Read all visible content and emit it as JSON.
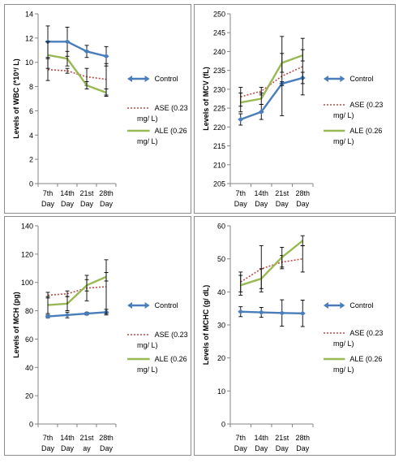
{
  "colors": {
    "control": "#4a7ebb",
    "ase": "#be4b48",
    "ale": "#98b954",
    "axis": "#868686",
    "errorbar": "#000000",
    "panel_border": "#8c8c8c"
  },
  "chart_data": [
    {
      "type": "line",
      "ylabel": "Levels of WBC (*10³/ L)",
      "categories": [
        [
          "7th",
          "Day"
        ],
        [
          "14th",
          "Day"
        ],
        [
          "21st",
          "Day"
        ],
        [
          "28th",
          "Day"
        ]
      ],
      "ylim": [
        0,
        14
      ],
      "ystep": 2,
      "yticks_labels": [
        "0",
        "2",
        "4",
        "6",
        "8",
        "10",
        "12",
        "14"
      ],
      "grid": false,
      "legend_position": "right",
      "series": [
        {
          "key": "control",
          "name": "Control",
          "values": [
            11.7,
            11.7,
            10.9,
            10.5
          ],
          "errors": [
            1.3,
            1.2,
            0.5,
            0.8
          ],
          "style": "solid-arrow"
        },
        {
          "key": "ase",
          "name": "ASE (0.23 mg/ L)",
          "values": [
            9.4,
            9.3,
            8.8,
            8.6
          ],
          "errors": [
            0.9,
            0.2,
            0.7,
            1.3
          ],
          "style": "dotted"
        },
        {
          "key": "ale",
          "name": "ALE (0.26 mg/ L)",
          "values": [
            10.6,
            10.3,
            8.1,
            7.5
          ],
          "errors": [
            1.1,
            0.6,
            0.3,
            0.3
          ],
          "style": "solid"
        }
      ]
    },
    {
      "type": "line",
      "ylabel": "Levels of MCV (fL)",
      "categories": [
        [
          "7th",
          "Day"
        ],
        [
          "14th",
          "Day"
        ],
        [
          "21st",
          "Day"
        ],
        [
          "28th",
          "Day"
        ]
      ],
      "ylim": [
        205,
        250
      ],
      "ystep": 5,
      "yticks_labels": [
        "205",
        "210",
        "215",
        "220",
        "225",
        "230",
        "235",
        "240",
        "245",
        "250"
      ],
      "grid": false,
      "legend_position": "right",
      "series": [
        {
          "key": "control",
          "name": "Control",
          "values": [
            222,
            224,
            231.5,
            233
          ],
          "errors": [
            1.5,
            2,
            0.5,
            1.5
          ],
          "style": "solid-arrow"
        },
        {
          "key": "ase",
          "name": "ASE (0.23 mg/ L)",
          "values": [
            228,
            229.5,
            233.5,
            236
          ],
          "errors": [
            2.5,
            1,
            10.5,
            7.5
          ],
          "style": "dotted"
        },
        {
          "key": "ale",
          "name": "ALE (0.26 mg/ L)",
          "values": [
            226.5,
            227.5,
            237,
            239
          ],
          "errors": [
            2.5,
            1.5,
            2.5,
            1.5
          ],
          "style": "solid"
        }
      ]
    },
    {
      "type": "line",
      "ylabel": "Levels of MCH (pg)",
      "categories": [
        [
          "7th",
          "Day"
        ],
        [
          "14th",
          "Day"
        ],
        [
          "21st",
          "ay"
        ],
        [
          "28th",
          "Day"
        ]
      ],
      "ylim": [
        0,
        140
      ],
      "ystep": 20,
      "yticks_labels": [
        "0",
        "20",
        "40",
        "60",
        "80",
        "100",
        "120",
        "140"
      ],
      "grid": false,
      "legend_position": "right",
      "series": [
        {
          "key": "control",
          "name": "Control",
          "values": [
            76,
            77,
            78,
            79
          ],
          "errors": [
            1,
            2,
            1,
            2
          ],
          "style": "solid-arrow"
        },
        {
          "key": "ase",
          "name": "ASE (0.23 mg/ L)",
          "values": [
            91,
            92,
            96,
            97
          ],
          "errors": [
            2,
            2,
            9,
            19
          ],
          "style": "dotted"
        },
        {
          "key": "ale",
          "name": "ALE (0.26 mg/ L)",
          "values": [
            84,
            85,
            98,
            104
          ],
          "errors": [
            6,
            5,
            4,
            3
          ],
          "style": "solid"
        }
      ]
    },
    {
      "type": "line",
      "ylabel": "Levels of MCHC (g/ dL)",
      "categories": [
        [
          "7th",
          "Day"
        ],
        [
          "14th",
          "Day"
        ],
        [
          "21st",
          "Day"
        ],
        [
          "28th",
          "Day"
        ]
      ],
      "ylim": [
        0,
        60
      ],
      "ystep": 10,
      "yticks_labels": [
        "0",
        "10",
        "20",
        "30",
        "40",
        "50",
        "60"
      ],
      "grid": false,
      "legend_position": "right",
      "series": [
        {
          "key": "control",
          "name": "Control",
          "values": [
            34,
            33.8,
            33.6,
            33.5
          ],
          "errors": [
            1.5,
            1.5,
            4,
            4
          ],
          "style": "solid-arrow"
        },
        {
          "key": "ase",
          "name": "ASE (0.23 mg/ L)",
          "values": [
            43,
            47,
            49,
            50
          ],
          "errors": [
            3,
            7,
            2,
            4
          ],
          "style": "dotted"
        },
        {
          "key": "ale",
          "name": "ALE (0.26 mg/ L)",
          "values": [
            42,
            44,
            50.5,
            55.5
          ],
          "errors": [
            3,
            3,
            3,
            1.5
          ],
          "style": "solid"
        }
      ]
    }
  ]
}
